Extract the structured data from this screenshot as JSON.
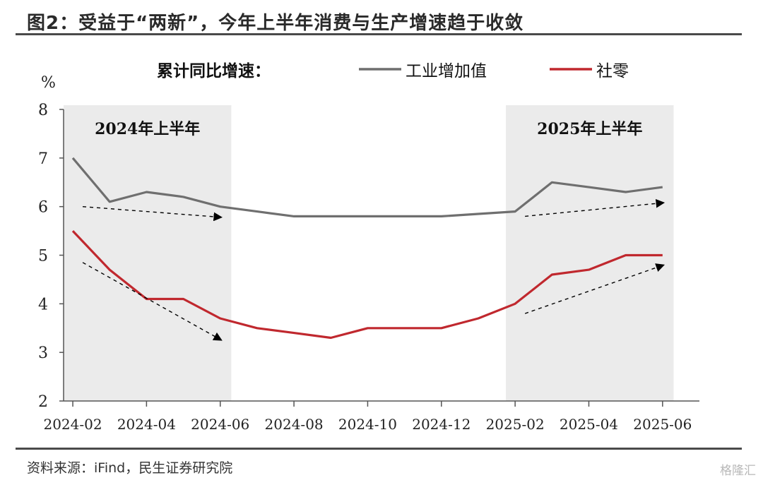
{
  "title": "图2：受益于“两新”，今年上半年消费与生产增速趋于收敛",
  "source": "资料来源：iFind，民生证券研究院",
  "watermark": "格隆汇",
  "chart_data": {
    "type": "line",
    "ylabel": "%",
    "ylim": [
      2,
      8
    ],
    "yticks": [
      2,
      3,
      4,
      5,
      6,
      7,
      8
    ],
    "legend_title": "累计同比增速：",
    "legend_position": "top",
    "x_tick_labels": [
      "2024-02",
      "2024-04",
      "2024-06",
      "2024-08",
      "2024-10",
      "2024-12",
      "2025-02",
      "2025-04",
      "2025-06"
    ],
    "x": [
      "2024-02",
      "2024-03",
      "2024-04",
      "2024-05",
      "2024-06",
      "2024-07",
      "2024-08",
      "2024-09",
      "2024-10",
      "2024-11",
      "2024-12",
      "2025-01",
      "2025-02",
      "2025-03",
      "2025-04",
      "2025-05",
      "2025-06"
    ],
    "series": [
      {
        "name": "工业增加值",
        "color": "#6f6f6f",
        "values": [
          7.0,
          6.1,
          6.3,
          6.2,
          6.0,
          5.9,
          5.8,
          5.8,
          5.8,
          5.8,
          5.8,
          5.85,
          5.9,
          6.5,
          6.4,
          6.3,
          6.4
        ]
      },
      {
        "name": "社零",
        "color": "#c0282e",
        "values": [
          5.5,
          4.7,
          4.1,
          4.1,
          3.7,
          3.5,
          3.4,
          3.3,
          3.5,
          3.5,
          3.5,
          3.7,
          4.0,
          4.6,
          4.7,
          5.0,
          5.0
        ]
      }
    ],
    "shaded_regions": [
      {
        "label": "2024年上半年",
        "from": "2024-02",
        "to": "2024-06"
      },
      {
        "label": "2025年上半年",
        "from": "2025-02",
        "to": "2025-06"
      }
    ],
    "trend_arrows": [
      {
        "series": "工业增加值",
        "from": [
          "2024-02",
          6.0
        ],
        "to": [
          "2024-06",
          5.78
        ]
      },
      {
        "series": "社零",
        "from": [
          "2024-02",
          4.85
        ],
        "to": [
          "2024-06",
          3.25
        ]
      },
      {
        "series": "工业增加值",
        "from": [
          "2025-02",
          5.8
        ],
        "to": [
          "2025-06",
          6.08
        ]
      },
      {
        "series": "社零",
        "from": [
          "2025-02",
          3.8
        ],
        "to": [
          "2025-06",
          4.8
        ]
      }
    ],
    "grid": false
  }
}
